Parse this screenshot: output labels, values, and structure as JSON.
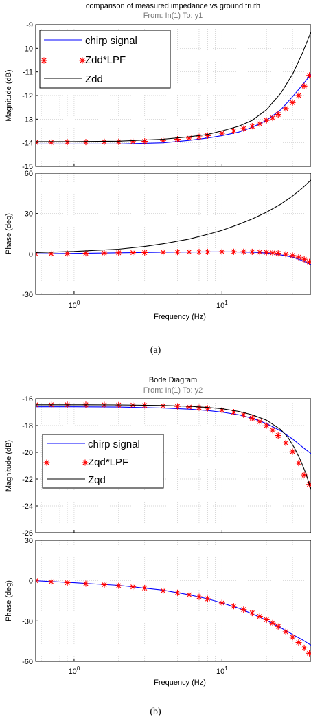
{
  "figures": [
    {
      "title": "comparison of measured impedance vs ground truth",
      "subtitle": "From: In(1)  To: y1",
      "caption": "(a)"
    },
    {
      "title": "Bode Diagram",
      "subtitle": "From: In(1)  To: y2",
      "caption": "(b)"
    }
  ],
  "chart_data": [
    {
      "type": "line",
      "title": "comparison of measured impedance vs ground truth",
      "subtitle": "From: In(1)  To: y1",
      "xlabel": "Frequency  (Hz)",
      "xscale": "log",
      "xlim": [
        0.55,
        40
      ],
      "xticks": [
        1,
        10
      ],
      "xticklabels": [
        "10^0",
        "10^1"
      ],
      "grid": "on",
      "legend_position": "top-left",
      "panels": [
        {
          "ylabel": "Magnitude (dB)",
          "ylim": [
            -15,
            -9
          ],
          "yticks": [
            -15,
            -14,
            -13,
            -12,
            -11,
            -10,
            -9
          ],
          "series": [
            {
              "name": "chirp signal",
              "color": "#0000ff",
              "style": "line",
              "x": [
                0.55,
                1,
                2,
                4,
                6,
                8,
                10,
                13,
                16,
                20,
                25,
                30,
                35,
                40
              ],
              "y": [
                -14.05,
                -14.05,
                -14.05,
                -14.0,
                -13.9,
                -13.8,
                -13.7,
                -13.55,
                -13.35,
                -13.05,
                -12.6,
                -12.05,
                -11.55,
                -11.1
              ]
            },
            {
              "name": "Zdd*LPF",
              "color": "#ff0000",
              "style": "markers",
              "marker": "*",
              "x": [
                0.55,
                0.7,
                0.9,
                1.2,
                1.6,
                2,
                2.5,
                3,
                4,
                5,
                6,
                7,
                8,
                10,
                12,
                14,
                16,
                18,
                20,
                22,
                24,
                27,
                30,
                33,
                36,
                39
              ],
              "y": [
                -13.98,
                -13.98,
                -13.97,
                -13.97,
                -13.96,
                -13.96,
                -13.95,
                -13.94,
                -13.9,
                -13.85,
                -13.8,
                -13.75,
                -13.7,
                -13.6,
                -13.5,
                -13.4,
                -13.3,
                -13.2,
                -13.05,
                -12.95,
                -12.8,
                -12.55,
                -12.3,
                -12.0,
                -11.6,
                -11.15
              ]
            },
            {
              "name": "Zdd",
              "color": "#000000",
              "style": "line",
              "x": [
                0.55,
                1,
                2,
                4,
                6,
                8,
                10,
                13,
                16,
                20,
                25,
                30,
                35,
                40
              ],
              "y": [
                -13.95,
                -13.95,
                -13.93,
                -13.85,
                -13.75,
                -13.65,
                -13.5,
                -13.3,
                -13.05,
                -12.6,
                -11.9,
                -11.1,
                -10.2,
                -9.3
              ]
            }
          ]
        },
        {
          "ylabel": "Phase (deg)",
          "ylim": [
            -30,
            60
          ],
          "yticks": [
            -30,
            0,
            30,
            60
          ],
          "series": [
            {
              "name": "chirp signal",
              "color": "#0000ff",
              "style": "line",
              "x": [
                0.55,
                1,
                2,
                4,
                8,
                12,
                16,
                20,
                25,
                30,
                35,
                40
              ],
              "y": [
                0,
                0.3,
                0.8,
                1.2,
                1.5,
                1.5,
                1.2,
                0.6,
                -0.8,
                -2.5,
                -5,
                -8
              ]
            },
            {
              "name": "Zdd*LPF",
              "color": "#ff0000",
              "style": "markers",
              "marker": "*",
              "x": [
                0.55,
                0.7,
                0.9,
                1.2,
                1.6,
                2,
                2.5,
                3,
                4,
                5,
                6,
                7,
                8,
                10,
                12,
                14,
                16,
                18,
                20,
                22,
                24,
                27,
                30,
                33,
                36,
                39
              ],
              "y": [
                0,
                0.1,
                0.2,
                0.4,
                0.6,
                0.8,
                0.9,
                1.0,
                1.2,
                1.3,
                1.4,
                1.5,
                1.5,
                1.6,
                1.6,
                1.6,
                1.5,
                1.3,
                1.1,
                0.8,
                0.4,
                -0.3,
                -1.2,
                -2.5,
                -4,
                -6
              ]
            },
            {
              "name": "Zdd",
              "color": "#000000",
              "style": "line",
              "x": [
                0.55,
                1,
                2,
                3,
                4,
                6,
                8,
                10,
                13,
                16,
                20,
                25,
                30,
                35,
                40
              ],
              "y": [
                1,
                1.8,
                3.5,
                5.5,
                7.5,
                11,
                14.5,
                17.5,
                22,
                26,
                31,
                37,
                43,
                49,
                55
              ]
            }
          ]
        }
      ]
    },
    {
      "type": "line",
      "title": "Bode Diagram",
      "subtitle": "From: In(1)  To: y2",
      "xlabel": "Frequency  (Hz)",
      "xscale": "log",
      "xlim": [
        0.55,
        40
      ],
      "xticks": [
        1,
        10
      ],
      "xticklabels": [
        "10^0",
        "10^1"
      ],
      "grid": "on",
      "legend_position": "middle-left",
      "panels": [
        {
          "ylabel": "Magnitude (dB)",
          "ylim": [
            -26,
            -16
          ],
          "yticks": [
            -26,
            -24,
            -22,
            -20,
            -18,
            -16
          ],
          "series": [
            {
              "name": "chirp signal",
              "color": "#0000ff",
              "style": "line",
              "x": [
                0.55,
                1,
                2,
                4,
                6,
                8,
                10,
                13,
                16,
                20,
                25,
                30,
                35,
                40
              ],
              "y": [
                -16.6,
                -16.6,
                -16.62,
                -16.7,
                -16.78,
                -16.88,
                -17.0,
                -17.2,
                -17.45,
                -17.85,
                -18.4,
                -19.0,
                -19.6,
                -20.1
              ]
            },
            {
              "name": "Zqd*LPF",
              "color": "#ff0000",
              "style": "markers",
              "marker": "*",
              "x": [
                0.55,
                0.7,
                0.9,
                1.2,
                1.6,
                2,
                2.5,
                3,
                4,
                5,
                6,
                7,
                8,
                10,
                12,
                14,
                16,
                18,
                20,
                22,
                24,
                27,
                30,
                33,
                36,
                39
              ],
              "y": [
                -16.45,
                -16.45,
                -16.45,
                -16.45,
                -16.46,
                -16.47,
                -16.48,
                -16.5,
                -16.53,
                -16.57,
                -16.62,
                -16.67,
                -16.72,
                -16.85,
                -17.0,
                -17.2,
                -17.45,
                -17.7,
                -18.0,
                -18.35,
                -18.75,
                -19.3,
                -19.95,
                -20.8,
                -21.7,
                -22.4
              ]
            },
            {
              "name": "Zqd",
              "color": "#000000",
              "style": "line",
              "x": [
                0.55,
                1,
                2,
                4,
                6,
                8,
                10,
                13,
                16,
                20,
                25,
                28,
                31,
                34,
                37,
                40
              ],
              "y": [
                -16.45,
                -16.45,
                -16.46,
                -16.5,
                -16.56,
                -16.65,
                -16.75,
                -16.95,
                -17.2,
                -17.6,
                -18.3,
                -18.9,
                -19.7,
                -20.6,
                -21.6,
                -22.8
              ]
            }
          ]
        },
        {
          "ylabel": "Phase (deg)",
          "ylim": [
            -60,
            30
          ],
          "yticks": [
            -60,
            -30,
            0,
            30
          ],
          "series": [
            {
              "name": "chirp signal",
              "color": "#0000ff",
              "style": "line",
              "x": [
                0.55,
                1,
                2,
                4,
                6,
                8,
                10,
                13,
                16,
                20,
                25,
                30,
                35,
                40
              ],
              "y": [
                0,
                -1.5,
                -3.5,
                -7,
                -10.5,
                -13.5,
                -16.5,
                -20.5,
                -24.5,
                -29.5,
                -35,
                -40,
                -44,
                -48
              ]
            },
            {
              "name": "Zqd*LPF",
              "color": "#ff0000",
              "style": "markers",
              "marker": "*",
              "x": [
                0.55,
                0.7,
                0.9,
                1.2,
                1.6,
                2,
                2.5,
                3,
                4,
                5,
                6,
                7,
                8,
                10,
                12,
                14,
                16,
                18,
                20,
                22,
                24,
                27,
                30,
                33,
                36,
                39
              ],
              "y": [
                0,
                -0.8,
                -1.5,
                -2.2,
                -3,
                -3.8,
                -4.6,
                -5.5,
                -7.5,
                -9,
                -10.5,
                -12,
                -13.5,
                -16.5,
                -19,
                -21.5,
                -24,
                -26.5,
                -29,
                -31.5,
                -34,
                -38,
                -42,
                -46,
                -50,
                -54
              ]
            },
            {
              "name": "Zqd",
              "color": "#000000",
              "style": "line",
              "x": [],
              "y": []
            }
          ]
        }
      ]
    }
  ]
}
